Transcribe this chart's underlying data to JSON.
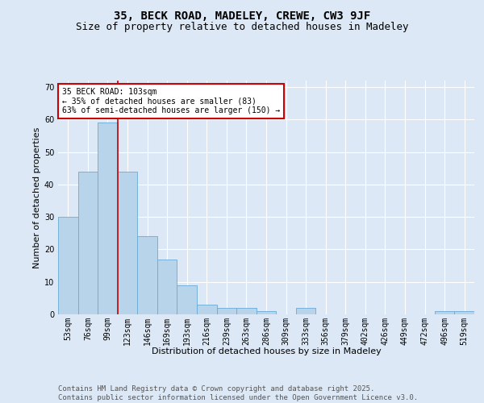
{
  "title": "35, BECK ROAD, MADELEY, CREWE, CW3 9JF",
  "subtitle": "Size of property relative to detached houses in Madeley",
  "xlabel": "Distribution of detached houses by size in Madeley",
  "ylabel": "Number of detached properties",
  "categories": [
    "53sqm",
    "76sqm",
    "99sqm",
    "123sqm",
    "146sqm",
    "169sqm",
    "193sqm",
    "216sqm",
    "239sqm",
    "263sqm",
    "286sqm",
    "309sqm",
    "333sqm",
    "356sqm",
    "379sqm",
    "402sqm",
    "426sqm",
    "449sqm",
    "472sqm",
    "496sqm",
    "519sqm"
  ],
  "values": [
    30,
    44,
    59,
    44,
    24,
    17,
    9,
    3,
    2,
    2,
    1,
    0,
    2,
    0,
    0,
    0,
    0,
    0,
    0,
    1,
    1
  ],
  "bar_color": "#b8d4ea",
  "bar_edge_color": "#6aaad4",
  "background_color": "#dce8f5",
  "grid_color": "#ffffff",
  "vline_color": "#cc0000",
  "vline_x_index": 2,
  "annotation_text": "35 BECK ROAD: 103sqm\n← 35% of detached houses are smaller (83)\n63% of semi-detached houses are larger (150) →",
  "annotation_box_color": "#ffffff",
  "annotation_border_color": "#cc0000",
  "ylim": [
    0,
    72
  ],
  "yticks": [
    0,
    10,
    20,
    30,
    40,
    50,
    60,
    70
  ],
  "footer_line1": "Contains HM Land Registry data © Crown copyright and database right 2025.",
  "footer_line2": "Contains public sector information licensed under the Open Government Licence v3.0.",
  "title_fontsize": 10,
  "subtitle_fontsize": 9,
  "axis_label_fontsize": 8,
  "tick_fontsize": 7,
  "annotation_fontsize": 7,
  "footer_fontsize": 6.5
}
